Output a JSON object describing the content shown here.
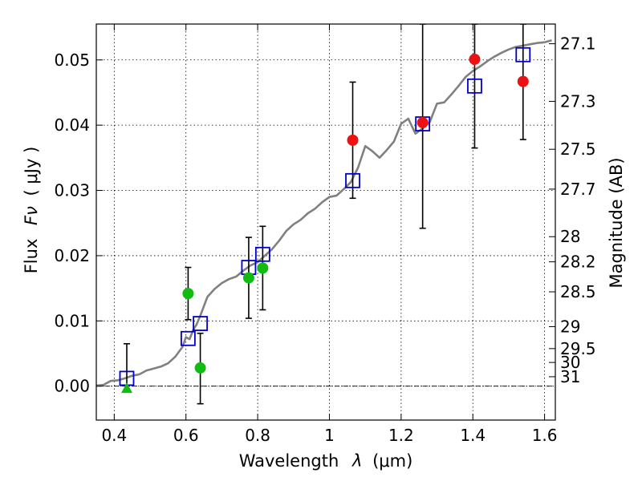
{
  "chart_data": {
    "type": "scatter",
    "xlabel_prefix": "Wavelength",
    "xlabel_symbol": "λ",
    "xlabel_unit": "(μm)",
    "ylabel_prefix": "Flux",
    "ylabel_symbol": "Fν",
    "ylabel_unit": "( μJy )",
    "y2label": "Magnitude (AB)",
    "xlim": [
      0.35,
      1.63
    ],
    "ylim": [
      -0.0052,
      0.0555
    ],
    "grid": true,
    "x_ticks": [
      0.4,
      0.6,
      0.8,
      1.0,
      1.2,
      1.4,
      1.6
    ],
    "x_tick_labels": [
      "0.4",
      "0.6",
      "0.8",
      "1",
      "1.2",
      "1.4",
      "1.6"
    ],
    "y_ticks": [
      0.0,
      0.01,
      0.02,
      0.03,
      0.04,
      0.05
    ],
    "y_tick_labels": [
      "0.00",
      "0.01",
      "0.02",
      "0.03",
      "0.04",
      "0.05"
    ],
    "mag_ticks": [
      27.1,
      27.3,
      27.5,
      27.7,
      28,
      28.2,
      28.5,
      29,
      29.5,
      30,
      31
    ],
    "mag_tick_labels": [
      "27.1",
      "27.3",
      "27.5",
      "27.7",
      "28",
      "28.2",
      "28.5",
      "29",
      "29.5",
      "30",
      "31"
    ],
    "colors": {
      "model": "#808080",
      "model_squares": "#0000cc",
      "green": "#11bb11",
      "red": "#ee1111",
      "errorbar": "#000000"
    },
    "series": [
      {
        "kind": "model-spectrum",
        "x": [
          0.35,
          0.37,
          0.39,
          0.41,
          0.43,
          0.45,
          0.47,
          0.49,
          0.51,
          0.53,
          0.55,
          0.57,
          0.59,
          0.6,
          0.61,
          0.62,
          0.63,
          0.64,
          0.66,
          0.68,
          0.7,
          0.72,
          0.74,
          0.76,
          0.78,
          0.8,
          0.82,
          0.84,
          0.86,
          0.88,
          0.9,
          0.92,
          0.94,
          0.96,
          0.98,
          1.0,
          1.02,
          1.04,
          1.06,
          1.08,
          1.1,
          1.12,
          1.14,
          1.16,
          1.18,
          1.2,
          1.22,
          1.24,
          1.26,
          1.28,
          1.3,
          1.32,
          1.34,
          1.36,
          1.38,
          1.4,
          1.42,
          1.44,
          1.46,
          1.48,
          1.5,
          1.52,
          1.54,
          1.56,
          1.58,
          1.6,
          1.62
        ],
        "y": [
          0.0001,
          0.0002,
          0.0008,
          0.0009,
          0.0012,
          0.0016,
          0.0018,
          0.0024,
          0.0027,
          0.003,
          0.0035,
          0.0045,
          0.006,
          0.0075,
          0.0072,
          0.0086,
          0.0095,
          0.0108,
          0.0137,
          0.0149,
          0.0158,
          0.0164,
          0.0168,
          0.0177,
          0.0185,
          0.019,
          0.02,
          0.021,
          0.0223,
          0.0238,
          0.0248,
          0.0255,
          0.0265,
          0.0272,
          0.0282,
          0.029,
          0.0292,
          0.0302,
          0.0313,
          0.0335,
          0.0368,
          0.036,
          0.035,
          0.0362,
          0.0375,
          0.0402,
          0.041,
          0.0387,
          0.0395,
          0.0405,
          0.0433,
          0.0435,
          0.0447,
          0.046,
          0.0474,
          0.0483,
          0.049,
          0.0498,
          0.0505,
          0.0511,
          0.0516,
          0.052,
          0.0522,
          0.0524,
          0.0526,
          0.0527,
          0.053
        ]
      },
      {
        "kind": "model-squares",
        "points": [
          {
            "x": 0.435,
            "y": 0.0012
          },
          {
            "x": 0.606,
            "y": 0.0073
          },
          {
            "x": 0.64,
            "y": 0.0096
          },
          {
            "x": 0.775,
            "y": 0.0182
          },
          {
            "x": 0.814,
            "y": 0.0202
          },
          {
            "x": 1.065,
            "y": 0.0315
          },
          {
            "x": 1.26,
            "y": 0.0402
          },
          {
            "x": 1.405,
            "y": 0.046
          },
          {
            "x": 1.54,
            "y": 0.0508
          }
        ]
      },
      {
        "kind": "observed-green",
        "points": [
          {
            "x": 0.606,
            "y": 0.0142,
            "lo": 0.0102,
            "hi": 0.0182
          },
          {
            "x": 0.64,
            "y": 0.0028,
            "lo": -0.0027,
            "hi": 0.0081
          },
          {
            "x": 0.775,
            "y": 0.0166,
            "lo": 0.0104,
            "hi": 0.0228
          },
          {
            "x": 0.814,
            "y": 0.0181,
            "lo": 0.0117,
            "hi": 0.0245
          }
        ]
      },
      {
        "kind": "upper-limit-green",
        "points": [
          {
            "x": 0.435,
            "y": -0.0003,
            "hi": 0.0065
          }
        ]
      },
      {
        "kind": "observed-red",
        "points": [
          {
            "x": 1.065,
            "y": 0.0377,
            "lo": 0.0288,
            "hi": 0.0466
          },
          {
            "x": 1.26,
            "y": 0.0404,
            "lo": 0.0242,
            "hi": 0.0555
          },
          {
            "x": 1.405,
            "y": 0.0501,
            "lo": 0.0365,
            "hi": 0.0555
          },
          {
            "x": 1.54,
            "y": 0.0467,
            "lo": 0.0378,
            "hi": 0.0555
          }
        ]
      }
    ]
  }
}
